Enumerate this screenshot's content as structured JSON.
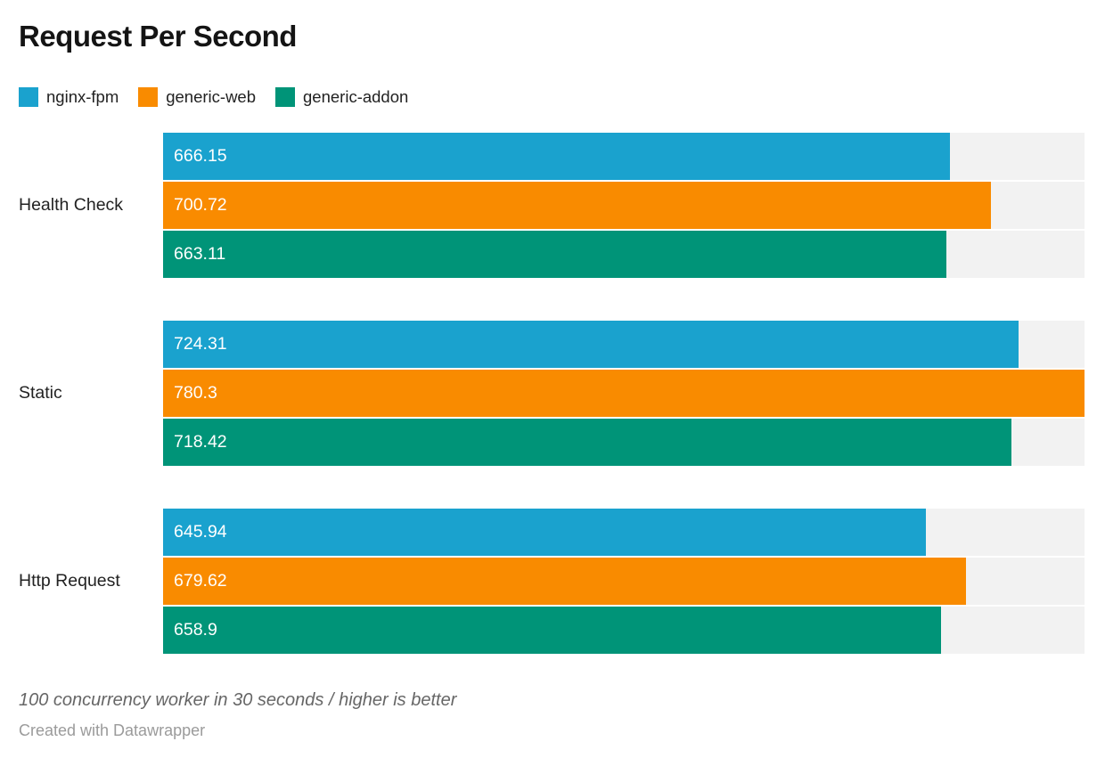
{
  "title": "Request Per Second",
  "legend": {
    "items": [
      {
        "label": "nginx-fpm",
        "color": "#1aa2ce"
      },
      {
        "label": "generic-web",
        "color": "#f98b00"
      },
      {
        "label": "generic-addon",
        "color": "#009478"
      }
    ]
  },
  "chart_data": {
    "type": "bar",
    "orientation": "horizontal",
    "title": "Request Per Second",
    "categories": [
      "Health Check",
      "Static",
      "Http Request"
    ],
    "series": [
      {
        "name": "nginx-fpm",
        "color": "#1aa2ce",
        "values": [
          666.15,
          724.31,
          645.94
        ],
        "labels": [
          "666.15",
          "724.31",
          "645.94"
        ]
      },
      {
        "name": "generic-web",
        "color": "#f98b00",
        "values": [
          700.72,
          780.3,
          679.62
        ],
        "labels": [
          "700.72",
          "780.3",
          "679.62"
        ]
      },
      {
        "name": "generic-addon",
        "color": "#009478",
        "values": [
          663.11,
          718.42,
          658.9
        ],
        "labels": [
          "663.11",
          "718.42",
          "658.9"
        ]
      }
    ],
    "xlim": [
      0,
      780.3
    ],
    "grid": false,
    "value_labels_inside": true,
    "track_color": "#f2f2f2",
    "legend_position": "top"
  },
  "footer": {
    "note": "100 concurrency worker in 30 seconds / higher is better",
    "attribution": "Created with Datawrapper"
  }
}
